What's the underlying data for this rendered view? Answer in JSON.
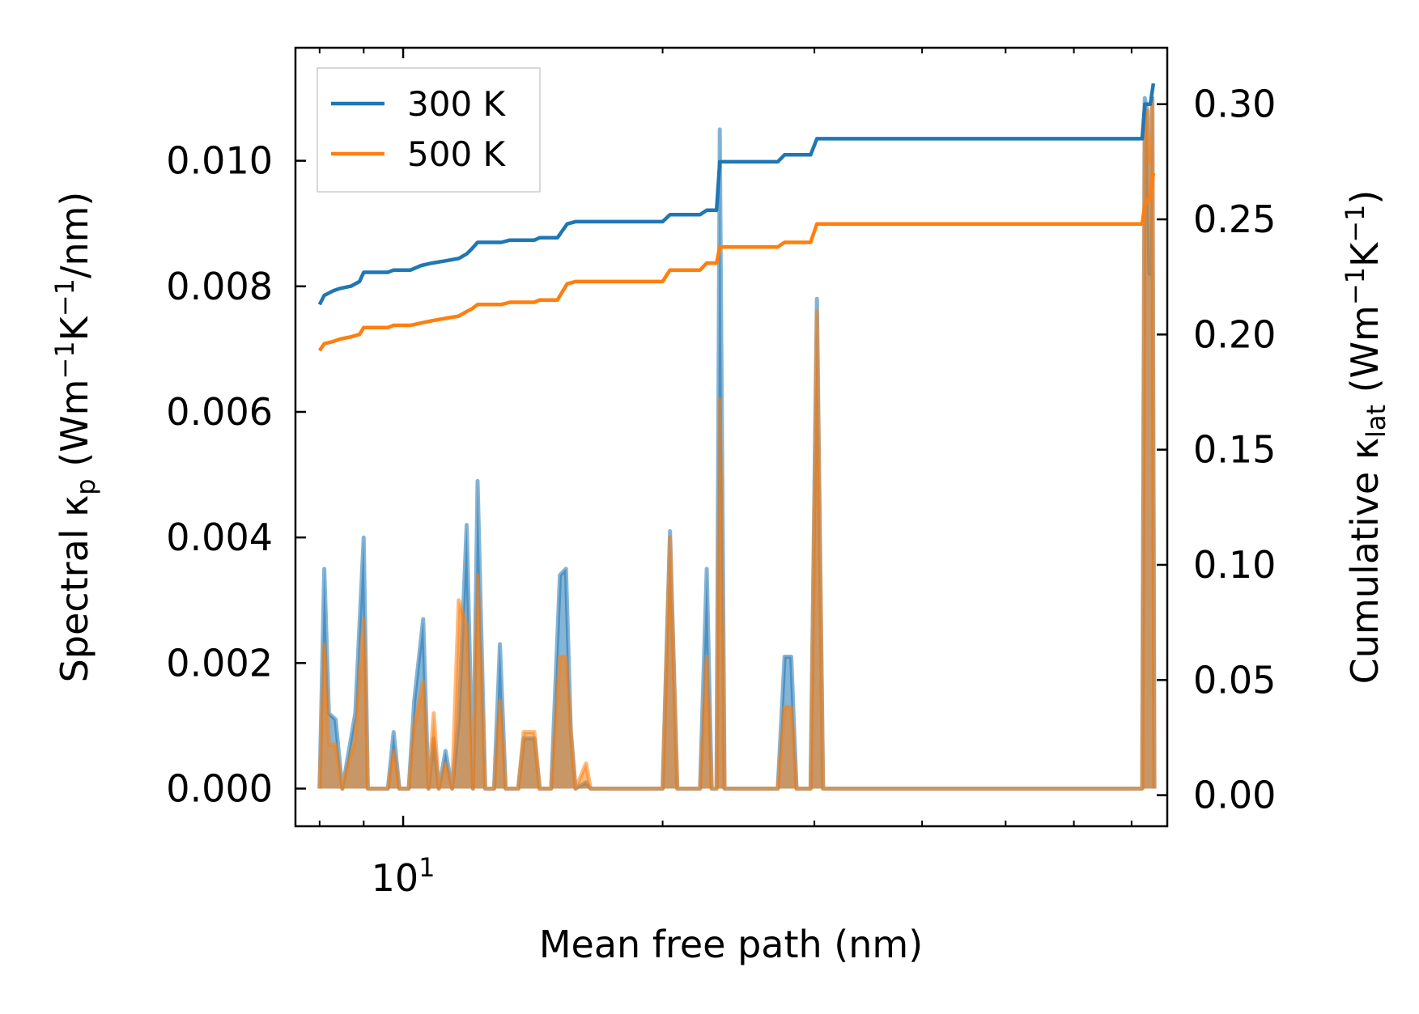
{
  "chart_data": {
    "type": "line",
    "xlabel": "Mean free path (nm)",
    "ylabel_left_main": "Spectral κ",
    "ylabel_left_sub": "p",
    "ylabel_left_unit_a": " (Wm",
    "ylabel_left_exp_a": "−1",
    "ylabel_left_unit_b": "K",
    "ylabel_left_exp_b": "−1",
    "ylabel_left_unit_c": "/nm)",
    "ylabel_right_main": "Cumulative κ",
    "ylabel_right_sub": "lat",
    "ylabel_right_unit_a": " (Wm",
    "ylabel_right_exp_a": "−1",
    "ylabel_right_unit_b": "K",
    "ylabel_right_exp_b": "−1",
    "ylabel_right_unit_c": ")",
    "x_scale": "log",
    "xlim": [
      7.5,
      77
    ],
    "x_major_ticks": [
      {
        "value": 10,
        "base": "10",
        "exp": "1"
      }
    ],
    "x_minor_ticks": [
      8,
      9,
      20,
      30,
      40,
      50,
      60,
      70
    ],
    "ylim_left": [
      -0.0006,
      0.0118
    ],
    "ylim_right": [
      -0.0135,
      0.3245
    ],
    "yticks_left": [
      "0.000",
      "0.002",
      "0.004",
      "0.006",
      "0.008",
      "0.010"
    ],
    "yticks_left_values": [
      0,
      0.002,
      0.004,
      0.006,
      0.008,
      0.01
    ],
    "yticks_right": [
      "0.00",
      "0.05",
      "0.10",
      "0.15",
      "0.20",
      "0.25",
      "0.30"
    ],
    "yticks_right_values": [
      0,
      0.05,
      0.1,
      0.15,
      0.2,
      0.25,
      0.3
    ],
    "legend": {
      "position": "top-left",
      "entries": [
        "300 K",
        "500 K"
      ]
    },
    "series_colors": {
      "300 K": "#1f77b4",
      "500 K": "#ff7f0e"
    },
    "spectral": [
      {
        "name": "300 K",
        "axis": "left",
        "points": [
          [
            8.0,
            0
          ],
          [
            8.1,
            0.0035
          ],
          [
            8.2,
            0.0012
          ],
          [
            8.35,
            0.0011
          ],
          [
            8.5,
            0
          ],
          [
            8.6,
            0.0004
          ],
          [
            8.8,
            0.0012
          ],
          [
            9.0,
            0.004
          ],
          [
            9.1,
            0
          ],
          [
            9.6,
            0
          ],
          [
            9.75,
            0.0009
          ],
          [
            9.9,
            0
          ],
          [
            10.15,
            0
          ],
          [
            10.3,
            0.0014
          ],
          [
            10.55,
            0.0027
          ],
          [
            10.7,
            0
          ],
          [
            10.85,
            0.0008
          ],
          [
            11.0,
            0
          ],
          [
            11.2,
            0.0006
          ],
          [
            11.4,
            0
          ],
          [
            11.6,
            0.0011
          ],
          [
            11.85,
            0.0042
          ],
          [
            12.05,
            0
          ],
          [
            12.2,
            0.0049
          ],
          [
            12.45,
            0
          ],
          [
            12.75,
            0
          ],
          [
            12.95,
            0.0023
          ],
          [
            13.15,
            0
          ],
          [
            13.6,
            0
          ],
          [
            13.8,
            0.0008
          ],
          [
            14.2,
            0.0008
          ],
          [
            14.4,
            0
          ],
          [
            14.85,
            0
          ],
          [
            15.2,
            0.0034
          ],
          [
            15.45,
            0.0035
          ],
          [
            15.65,
            0.0009
          ],
          [
            15.85,
            0
          ],
          [
            16.3,
            0.0001
          ],
          [
            16.5,
            0
          ],
          [
            20.0,
            0
          ],
          [
            20.4,
            0.0041
          ],
          [
            20.8,
            0
          ],
          [
            22.1,
            0
          ],
          [
            22.5,
            0.0035
          ],
          [
            22.8,
            0
          ],
          [
            23.1,
            0
          ],
          [
            23.3,
            0.0105
          ],
          [
            23.6,
            0
          ],
          [
            27.2,
            0
          ],
          [
            27.7,
            0.0021
          ],
          [
            28.2,
            0.0021
          ],
          [
            28.6,
            0
          ],
          [
            29.7,
            0
          ],
          [
            30.2,
            0.0078
          ],
          [
            30.7,
            0
          ],
          [
            72.0,
            0
          ],
          [
            72.5,
            0.011
          ],
          [
            73.0,
            0.0108
          ],
          [
            73.4,
            0.0082
          ],
          [
            74.0,
            0.011
          ],
          [
            74.4,
            0
          ]
        ]
      },
      {
        "name": "500 K",
        "axis": "left",
        "points": [
          [
            8.0,
            0
          ],
          [
            8.1,
            0.0023
          ],
          [
            8.2,
            0.0007
          ],
          [
            8.35,
            0.0007
          ],
          [
            8.5,
            0
          ],
          [
            8.6,
            0.0003
          ],
          [
            8.8,
            0.0008
          ],
          [
            9.0,
            0.0027
          ],
          [
            9.1,
            0
          ],
          [
            9.6,
            0
          ],
          [
            9.75,
            0.0006
          ],
          [
            9.9,
            0
          ],
          [
            10.15,
            0
          ],
          [
            10.3,
            0.001
          ],
          [
            10.55,
            0.0017
          ],
          [
            10.7,
            0
          ],
          [
            10.85,
            0.0012
          ],
          [
            11.0,
            0
          ],
          [
            11.2,
            0.0004
          ],
          [
            11.4,
            0
          ],
          [
            11.6,
            0.003
          ],
          [
            11.85,
            0.0026
          ],
          [
            12.05,
            0
          ],
          [
            12.2,
            0.0034
          ],
          [
            12.45,
            0
          ],
          [
            12.75,
            0
          ],
          [
            12.95,
            0.0014
          ],
          [
            13.15,
            0
          ],
          [
            13.6,
            0
          ],
          [
            13.8,
            0.0009
          ],
          [
            14.2,
            0.0009
          ],
          [
            14.4,
            0
          ],
          [
            14.85,
            0
          ],
          [
            15.2,
            0.0021
          ],
          [
            15.45,
            0.0021
          ],
          [
            15.65,
            0.0009
          ],
          [
            15.85,
            0
          ],
          [
            16.3,
            0.0004
          ],
          [
            16.5,
            0
          ],
          [
            20.0,
            0
          ],
          [
            20.4,
            0.004
          ],
          [
            20.8,
            0
          ],
          [
            22.1,
            0
          ],
          [
            22.5,
            0.0021
          ],
          [
            22.8,
            0
          ],
          [
            23.1,
            0
          ],
          [
            23.3,
            0.0062
          ],
          [
            23.6,
            0
          ],
          [
            27.2,
            0
          ],
          [
            27.7,
            0.0013
          ],
          [
            28.2,
            0.0013
          ],
          [
            28.6,
            0
          ],
          [
            29.7,
            0
          ],
          [
            30.2,
            0.0076
          ],
          [
            30.7,
            0
          ],
          [
            72.0,
            0
          ],
          [
            72.5,
            0.0108
          ],
          [
            73.0,
            0.0108
          ],
          [
            73.4,
            0.01
          ],
          [
            74.0,
            0.011
          ],
          [
            74.4,
            0
          ]
        ]
      }
    ],
    "cumulative": [
      {
        "name": "300 K",
        "axis": "right",
        "points": [
          [
            8.0,
            0.213
          ],
          [
            8.1,
            0.217
          ],
          [
            8.3,
            0.219
          ],
          [
            8.45,
            0.22
          ],
          [
            8.7,
            0.221
          ],
          [
            8.9,
            0.223
          ],
          [
            9.0,
            0.227
          ],
          [
            9.6,
            0.227
          ],
          [
            9.75,
            0.228
          ],
          [
            10.2,
            0.228
          ],
          [
            10.5,
            0.23
          ],
          [
            10.8,
            0.231
          ],
          [
            11.2,
            0.232
          ],
          [
            11.6,
            0.233
          ],
          [
            11.85,
            0.235
          ],
          [
            12.0,
            0.237
          ],
          [
            12.2,
            0.24
          ],
          [
            13.0,
            0.24
          ],
          [
            13.3,
            0.241
          ],
          [
            14.2,
            0.241
          ],
          [
            14.4,
            0.242
          ],
          [
            15.1,
            0.242
          ],
          [
            15.5,
            0.248
          ],
          [
            15.85,
            0.249
          ],
          [
            20.0,
            0.249
          ],
          [
            20.4,
            0.252
          ],
          [
            22.1,
            0.252
          ],
          [
            22.5,
            0.254
          ],
          [
            23.1,
            0.254
          ],
          [
            23.3,
            0.275
          ],
          [
            27.2,
            0.275
          ],
          [
            27.7,
            0.278
          ],
          [
            29.7,
            0.278
          ],
          [
            30.2,
            0.285
          ],
          [
            72.0,
            0.285
          ],
          [
            72.5,
            0.3
          ],
          [
            73.6,
            0.3
          ],
          [
            74.2,
            0.309
          ]
        ]
      },
      {
        "name": "500 K",
        "axis": "right",
        "points": [
          [
            8.0,
            0.193
          ],
          [
            8.1,
            0.196
          ],
          [
            8.3,
            0.197
          ],
          [
            8.45,
            0.198
          ],
          [
            8.7,
            0.199
          ],
          [
            8.9,
            0.2
          ],
          [
            9.0,
            0.203
          ],
          [
            9.6,
            0.203
          ],
          [
            9.75,
            0.204
          ],
          [
            10.2,
            0.204
          ],
          [
            10.5,
            0.205
          ],
          [
            10.8,
            0.206
          ],
          [
            11.2,
            0.207
          ],
          [
            11.6,
            0.208
          ],
          [
            11.85,
            0.21
          ],
          [
            12.0,
            0.211
          ],
          [
            12.2,
            0.213
          ],
          [
            13.0,
            0.213
          ],
          [
            13.3,
            0.214
          ],
          [
            14.2,
            0.214
          ],
          [
            14.4,
            0.215
          ],
          [
            15.1,
            0.215
          ],
          [
            15.5,
            0.222
          ],
          [
            15.85,
            0.223
          ],
          [
            20.0,
            0.223
          ],
          [
            20.4,
            0.228
          ],
          [
            22.1,
            0.228
          ],
          [
            22.5,
            0.231
          ],
          [
            23.1,
            0.231
          ],
          [
            23.3,
            0.238
          ],
          [
            27.2,
            0.238
          ],
          [
            27.7,
            0.24
          ],
          [
            29.7,
            0.24
          ],
          [
            30.2,
            0.248
          ],
          [
            72.0,
            0.248
          ],
          [
            72.5,
            0.256
          ],
          [
            73.6,
            0.26
          ],
          [
            74.2,
            0.27
          ]
        ]
      }
    ]
  }
}
